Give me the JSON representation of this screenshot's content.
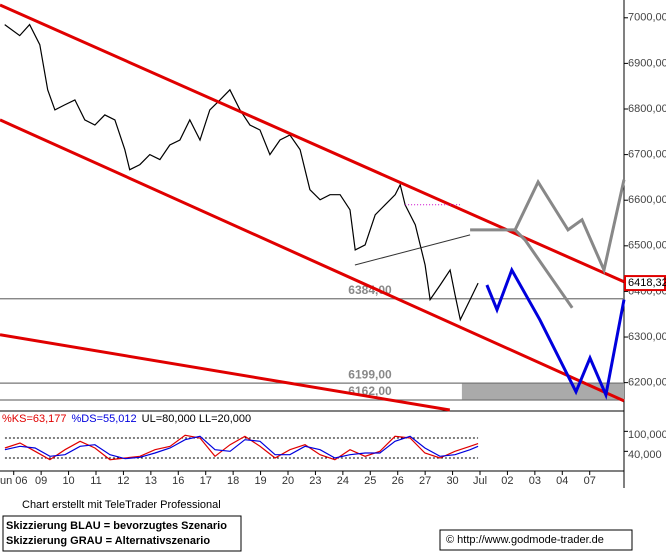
{
  "chart_data": [
    {
      "type": "line",
      "xlim": [
        -0.5,
        22.25
      ],
      "ylim": [
        6140,
        7039
      ],
      "yticks": [
        {
          "value": 6200,
          "label": "6200,00"
        },
        {
          "value": 6300,
          "label": "6300,00"
        },
        {
          "value": 6400,
          "label": "6400,00"
        },
        {
          "value": 6500,
          "label": "6500,00"
        },
        {
          "value": 6600,
          "label": "6600,00"
        },
        {
          "value": 6700,
          "label": "6700,00"
        },
        {
          "value": 6800,
          "label": "6800,00"
        },
        {
          "value": 6900,
          "label": "6900,00"
        },
        {
          "value": 7000,
          "label": "7000,00"
        }
      ],
      "x": [
        -0.33,
        0.22,
        0.58,
        0.95,
        1.24,
        1.5,
        1.86,
        2.23,
        2.59,
        2.96,
        3.32,
        3.69,
        4.05,
        4.23,
        4.6,
        4.96,
        5.33,
        5.69,
        6.06,
        6.42,
        6.79,
        7.15,
        7.52,
        7.88,
        8.25,
        8.61,
        8.98,
        9.34,
        9.71,
        10.07,
        10.44,
        10.8,
        11.17,
        11.53,
        11.9,
        12.26,
        12.45,
        12.81,
        13.18,
        13.54,
        13.91,
        14.09,
        14.27,
        14.64,
        15.0,
        15.18,
        15.55,
        15.91,
        16.09,
        16.28,
        16.64,
        16.93
      ],
      "series": [
        {
          "color": "#000000",
          "values": [
            6985,
            6961,
            6985,
            6941,
            6842,
            6798,
            6809,
            6820,
            6776,
            6765,
            6787,
            6776,
            6711,
            6667,
            6678,
            6700,
            6689,
            6721,
            6732,
            6776,
            6732,
            6798,
            6820,
            6842,
            6798,
            6765,
            6754,
            6700,
            6732,
            6743,
            6711,
            6623,
            6601,
            6612,
            6612,
            6579,
            6491,
            6502,
            6568,
            6590,
            6612,
            6634,
            6590,
            6546,
            6458,
            6382,
            6414,
            6447,
            6393,
            6338,
            6382,
            6418.32
          ]
        }
      ],
      "hlines": [
        {
          "value": 6384,
          "label": "6384,00"
        },
        {
          "value": 6199,
          "label": "6199,00"
        },
        {
          "value": 6162,
          "label": "6162,00"
        }
      ],
      "zone": {
        "x": [
          16.34,
          22.25
        ],
        "y": [
          6162,
          6199
        ]
      },
      "last_price": {
        "value": 6418.32,
        "label": "6418,32"
      },
      "trend_lines": [
        {
          "color": "#e00000",
          "x": [
            -0.5,
            22.25
          ],
          "y": [
            7028,
            6421
          ]
        },
        {
          "color": "#e00000",
          "x": [
            -0.5,
            22.25
          ],
          "y": [
            6776,
            6160
          ]
        },
        {
          "color": "#e00000",
          "x": [
            -0.5,
            15.9
          ],
          "y": [
            6305,
            6140
          ]
        },
        {
          "color": "#333333",
          "x": [
            12.44,
            16.64
          ],
          "y": [
            6458,
            6524
          ]
        },
        {
          "color": "#cc00cc",
          "style": "dotted",
          "x": [
            14.27,
            16.27
          ],
          "y": [
            6590,
            6590
          ]
        }
      ],
      "scenarios": [
        {
          "color": "#888888",
          "x": [
            16.64,
            18.28,
            19.12,
            20.21,
            20.72,
            21.52,
            22.25
          ],
          "y": [
            6535,
            6535,
            6640,
            6535,
            6557,
            6447,
            6645
          ]
        },
        {
          "color": "#888888",
          "x": [
            18.28,
            18.64,
            20.36
          ],
          "y": [
            6535,
            6513,
            6364
          ]
        },
        {
          "color": "#0000dd",
          "x": [
            17.25,
            17.62,
            18.16,
            19.18,
            20.5,
            21.01,
            21.59,
            22.25
          ],
          "y": [
            6414,
            6360,
            6447,
            6338,
            6180,
            6254,
            6173,
            6382
          ]
        }
      ]
    },
    {
      "type": "line",
      "title_parts": [
        {
          "text": "%KS=63,177",
          "color": "#e00000"
        },
        {
          "text": "%DS=55,012",
          "color": "#0000dd"
        },
        {
          "text": "UL=80,000 LL=20,000",
          "color": "#000000"
        }
      ],
      "xlim": [
        -0.5,
        22.25
      ],
      "ylim": [
        -16,
        158
      ],
      "yticks": [
        {
          "value": 100,
          "label": "100,000"
        },
        {
          "value": 40,
          "label": "40,000"
        }
      ],
      "bands": [
        80,
        20
      ],
      "xticks": [
        {
          "value": 0,
          "label": "un 06"
        },
        {
          "value": 1,
          "label": "09"
        },
        {
          "value": 2,
          "label": "10"
        },
        {
          "value": 3,
          "label": "11"
        },
        {
          "value": 4,
          "label": "12"
        },
        {
          "value": 5,
          "label": "13"
        },
        {
          "value": 6,
          "label": "16"
        },
        {
          "value": 7,
          "label": "17"
        },
        {
          "value": 8,
          "label": "18"
        },
        {
          "value": 9,
          "label": "19"
        },
        {
          "value": 10,
          "label": "20"
        },
        {
          "value": 11,
          "label": "23"
        },
        {
          "value": 12,
          "label": "24"
        },
        {
          "value": 13,
          "label": "25"
        },
        {
          "value": 14,
          "label": "26"
        },
        {
          "value": 15,
          "label": "27"
        },
        {
          "value": 16,
          "label": "30"
        },
        {
          "value": 17,
          "label": "Jul"
        },
        {
          "value": 18,
          "label": "02"
        },
        {
          "value": 19,
          "label": "03"
        },
        {
          "value": 20,
          "label": "04"
        },
        {
          "value": 21,
          "label": "07"
        }
      ],
      "x": [
        -0.32,
        0.23,
        0.78,
        1.32,
        1.87,
        2.42,
        2.96,
        3.51,
        4.06,
        4.6,
        5.15,
        5.7,
        6.25,
        6.79,
        7.34,
        7.89,
        8.43,
        8.98,
        9.53,
        10.07,
        10.62,
        11.17,
        11.71,
        12.26,
        12.81,
        13.35,
        13.9,
        14.45,
        14.99,
        15.54,
        16.09,
        16.64,
        16.93
      ],
      "series": [
        {
          "color": "#e00000",
          "values": [
            50,
            65,
            40,
            15,
            45,
            70,
            50,
            15,
            20,
            25,
            45,
            55,
            88,
            80,
            25,
            60,
            85,
            55,
            20,
            45,
            60,
            30,
            15,
            45,
            25,
            40,
            85,
            80,
            35,
            20,
            40,
            55,
            63.177
          ]
        },
        {
          "color": "#0000dd",
          "values": [
            45,
            55,
            50,
            25,
            30,
            55,
            60,
            30,
            18,
            22,
            35,
            50,
            75,
            85,
            45,
            40,
            75,
            70,
            30,
            30,
            55,
            45,
            20,
            30,
            35,
            35,
            70,
            85,
            50,
            25,
            30,
            45,
            55.012
          ]
        }
      ]
    }
  ],
  "footer": {
    "credit": "Chart erstellt mit TeleTrader Professional",
    "legend": [
      "Skizzierung BLAU = bevorzugtes Szenario",
      "Skizzierung GRAU = Alternativszenario"
    ],
    "copyright": "© http://www.godmode-trader.de"
  }
}
